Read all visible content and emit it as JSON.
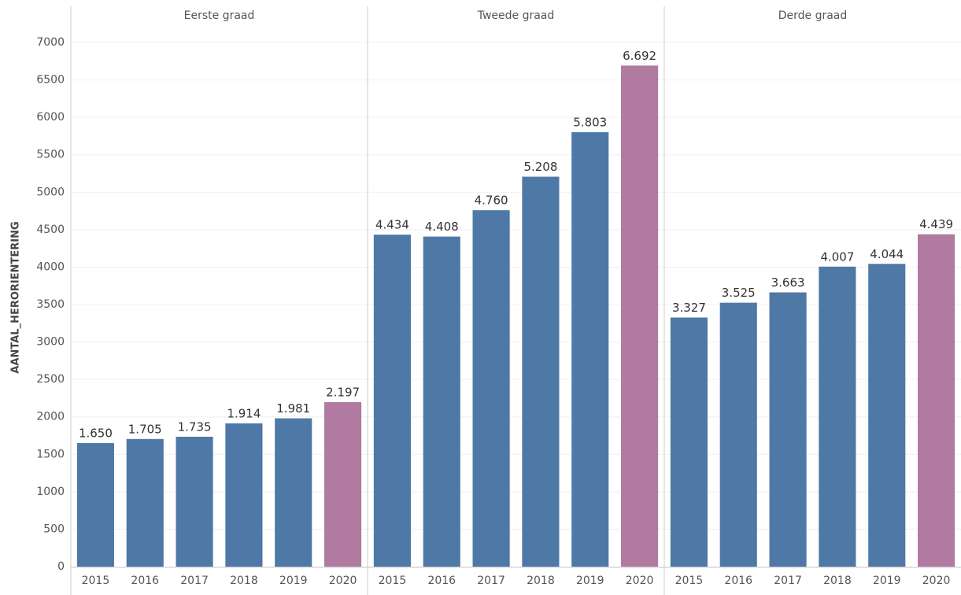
{
  "chart_data": {
    "type": "bar",
    "ylabel": "AANTAL_HERORIENTERING",
    "ylim": [
      0,
      7200
    ],
    "yticks": [
      0,
      500,
      1000,
      1500,
      2000,
      2500,
      3000,
      3500,
      4000,
      4500,
      5000,
      5500,
      6000,
      6500,
      7000
    ],
    "grid": true,
    "panels": [
      {
        "title": "Eerste graad",
        "categories": [
          "2015",
          "2016",
          "2017",
          "2018",
          "2019",
          "2020"
        ],
        "values": [
          1650,
          1705,
          1735,
          1914,
          1981,
          2197
        ],
        "value_labels": [
          "1.650",
          "1.705",
          "1.735",
          "1.914",
          "1.981",
          "2.197"
        ],
        "colors": [
          "#4e79a7",
          "#4e79a7",
          "#4e79a7",
          "#4e79a7",
          "#4e79a7",
          "#b07aa1"
        ]
      },
      {
        "title": "Tweede graad",
        "categories": [
          "2015",
          "2016",
          "2017",
          "2018",
          "2019",
          "2020"
        ],
        "values": [
          4434,
          4408,
          4760,
          5208,
          5803,
          6692
        ],
        "value_labels": [
          "4.434",
          "4.408",
          "4.760",
          "5.208",
          "5.803",
          "6.692"
        ],
        "colors": [
          "#4e79a7",
          "#4e79a7",
          "#4e79a7",
          "#4e79a7",
          "#4e79a7",
          "#b07aa1"
        ]
      },
      {
        "title": "Derde graad",
        "categories": [
          "2015",
          "2016",
          "2017",
          "2018",
          "2019",
          "2020"
        ],
        "values": [
          3327,
          3525,
          3663,
          4007,
          4044,
          4439
        ],
        "value_labels": [
          "3.327",
          "3.525",
          "3.663",
          "4.007",
          "4.044",
          "4.439"
        ],
        "colors": [
          "#4e79a7",
          "#4e79a7",
          "#4e79a7",
          "#4e79a7",
          "#4e79a7",
          "#b07aa1"
        ]
      }
    ]
  }
}
